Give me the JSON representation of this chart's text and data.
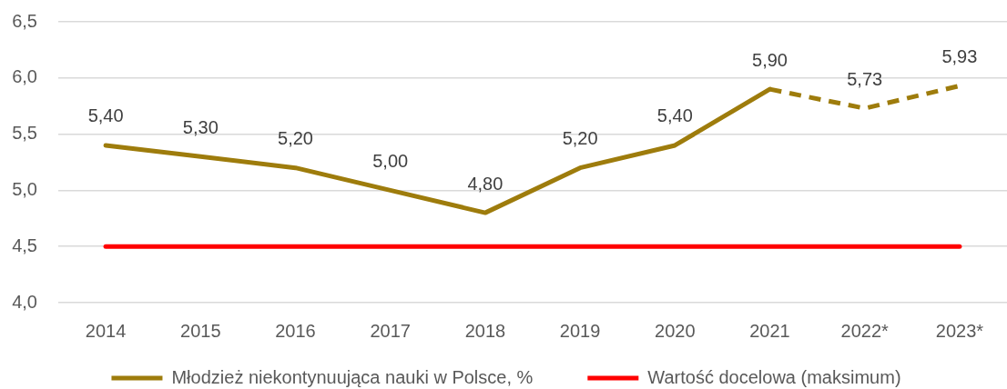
{
  "chart_data": {
    "type": "line",
    "categories": [
      "2014",
      "2015",
      "2016",
      "2017",
      "2018",
      "2019",
      "2020",
      "2021",
      "2022*",
      "2023*"
    ],
    "series": [
      {
        "name": "Młodzież niekontynuująca nauki w Polsce, %",
        "color": "#9e7c0c",
        "values": [
          5.4,
          5.3,
          5.2,
          5.0,
          4.8,
          5.2,
          5.4,
          5.9,
          null,
          null
        ],
        "value_labels": [
          "5,40",
          "5,30",
          "5,20",
          "5,00",
          "4,80",
          "5,20",
          "5,40",
          "5,90",
          null,
          null
        ]
      },
      {
        "color": "#9e7c0c",
        "line_style": "dashed",
        "values": [
          null,
          null,
          null,
          null,
          null,
          null,
          null,
          5.9,
          5.73,
          5.93
        ],
        "value_labels": [
          null,
          null,
          null,
          null,
          null,
          null,
          null,
          null,
          "5,73",
          "5,93"
        ]
      },
      {
        "name": "Wartość docelowa (maksimum)",
        "color": "#ff0000",
        "values": [
          4.5,
          4.5,
          4.5,
          4.5,
          4.5,
          4.5,
          4.5,
          4.5,
          4.5,
          4.5
        ]
      }
    ],
    "ylim": [
      4,
      6.5
    ],
    "yticks": [
      {
        "value": 4,
        "label": "4,0"
      },
      {
        "value": 4.5,
        "label": "4,5"
      },
      {
        "value": 5,
        "label": "5,0"
      },
      {
        "value": 5.5,
        "label": "5,5"
      },
      {
        "value": 6,
        "label": "6,0"
      },
      {
        "value": 6.5,
        "label": "6,5"
      }
    ],
    "grid": "y",
    "legend": "bottom",
    "marker": "none",
    "line_style": "solid"
  }
}
